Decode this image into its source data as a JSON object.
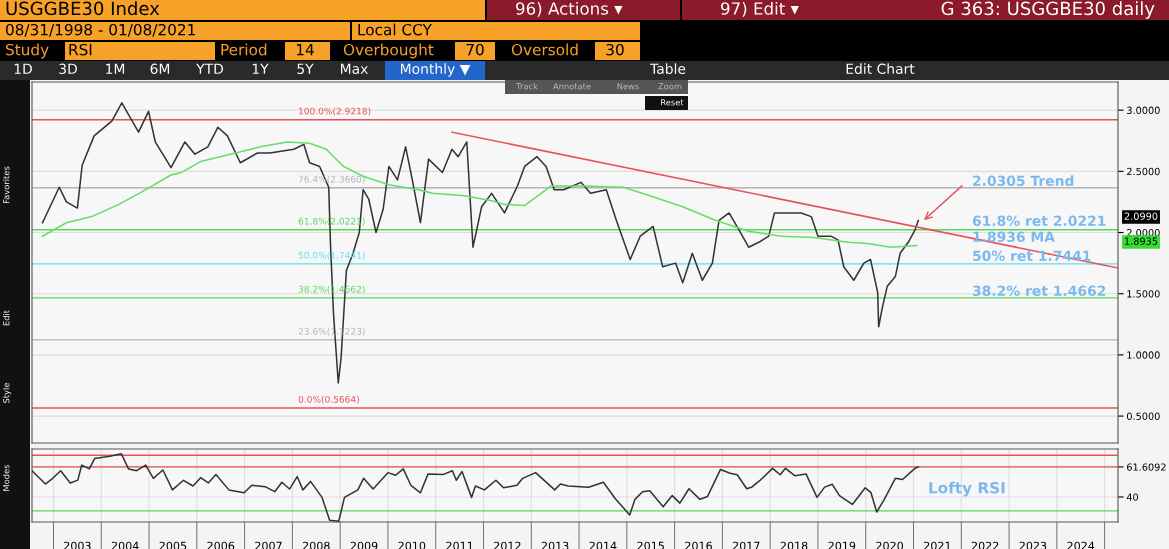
{
  "chart_data": [
    {
      "type": "line",
      "title": "USGGBE30 Index",
      "subtitle": "G 363: USGGBE30 daily",
      "annotations": [
        "96) Actions ▾",
        "97) Edit ▾",
        "08/31/1998 - 01/08/2021",
        "Local CCY",
        "Study",
        "RSI",
        "Period",
        "14",
        "Overbought",
        "70",
        "Oversold",
        "30",
        "1D",
        "3D",
        "1M",
        "6M",
        "YTD",
        "1Y",
        "5Y",
        "Max",
        "Monthly ▼",
        "Table",
        "Edit Chart",
        "Track",
        "Annotate",
        "News",
        "Zoom",
        "Reset",
        "Favorites",
        "Edit",
        "Style",
        "Modes",
        "1.8936 MA",
        "2.0990",
        "1.8935",
        "2.0305 Trend",
        "61.8% ret 2.0221",
        "50% ret 1.7441",
        "38.2% ret 1.4662"
      ],
      "series": [
        {
          "color": "#333333",
          "x": [
            2002.77,
            2003.12,
            2003.27,
            2003.5,
            2003.6,
            2003.85,
            2004.22,
            2004.43,
            2004.78,
            2004.99,
            2005.13,
            2005.46,
            2005.75,
            2005.96,
            2006.23,
            2006.44,
            2006.64,
            2006.91,
            2007.27,
            2007.53,
            2008.03,
            2008.24,
            2008.36,
            2008.57,
            2008.76,
            2008.8,
            2008.86,
            2008.96,
            2009.02,
            2009.13,
            2009.27,
            2009.4,
            2009.48,
            2009.6,
            2009.75,
            2009.9,
            2010.02,
            2010.2,
            2010.37,
            2010.51,
            2010.68,
            2010.85,
            2011.14,
            2011.34,
            2011.47,
            2011.65,
            2011.78,
            2011.96,
            2012.17,
            2012.44,
            2012.71,
            2012.86,
            2013.12,
            2013.31,
            2013.48,
            2013.68,
            2014.04,
            2014.24,
            2014.57,
            2014.78,
            2015.07,
            2015.28,
            2015.55,
            2015.75,
            2016.02,
            2016.17,
            2016.37,
            2016.58,
            2016.79,
            2016.93,
            2017.14,
            2017.35,
            2017.55,
            2017.76,
            2017.97,
            2018.09,
            2018.38,
            2018.65,
            2018.86,
            2019.0,
            2019.27,
            2019.42,
            2019.54,
            2019.75,
            2019.96,
            2020.1,
            2020.25,
            2020.27,
            2020.35,
            2020.45,
            2020.62,
            2020.72,
            2020.89,
            2021.03,
            2021.1
          ],
          "values": [
            2.08,
            2.37,
            2.25,
            2.2,
            2.55,
            2.79,
            2.91,
            3.06,
            2.82,
            2.99,
            2.74,
            2.53,
            2.74,
            2.64,
            2.7,
            2.86,
            2.79,
            2.57,
            2.65,
            2.65,
            2.68,
            2.72,
            2.57,
            2.54,
            2.37,
            1.88,
            1.34,
            0.77,
            0.98,
            1.69,
            1.83,
            2.0,
            2.35,
            2.27,
            2.0,
            2.19,
            2.54,
            2.43,
            2.7,
            2.43,
            2.08,
            2.6,
            2.49,
            2.68,
            2.62,
            2.74,
            1.88,
            2.21,
            2.32,
            2.16,
            2.38,
            2.54,
            2.62,
            2.54,
            2.35,
            2.35,
            2.41,
            2.32,
            2.35,
            2.1,
            1.78,
            1.97,
            2.05,
            1.72,
            1.75,
            1.59,
            1.83,
            1.61,
            1.75,
            2.1,
            2.16,
            2.02,
            1.88,
            1.92,
            1.97,
            2.16,
            2.16,
            2.16,
            2.13,
            1.97,
            1.97,
            1.94,
            1.72,
            1.61,
            1.75,
            1.78,
            1.51,
            1.23,
            1.39,
            1.56,
            1.64,
            1.83,
            1.92,
            2.02,
            2.099
          ]
        },
        {
          "color": "#66dd66",
          "x": [
            2002.77,
            2003.27,
            2003.8,
            2004.37,
            2004.84,
            2005.46,
            2005.67,
            2006.08,
            2006.7,
            2007.33,
            2007.89,
            2008.36,
            2008.71,
            2009.07,
            2009.48,
            2010.02,
            2010.64,
            2010.93,
            2011.61,
            2012.17,
            2012.44,
            2012.86,
            2013.41,
            2014.1,
            2014.93,
            2015.48,
            2016.17,
            2016.85,
            2017.55,
            2018.24,
            2018.92,
            2019.63,
            2020.04,
            2020.52,
            2021.07
          ],
          "values": [
            1.97,
            2.08,
            2.13,
            2.23,
            2.33,
            2.47,
            2.49,
            2.58,
            2.64,
            2.7,
            2.74,
            2.73,
            2.68,
            2.54,
            2.46,
            2.39,
            2.35,
            2.32,
            2.3,
            2.26,
            2.23,
            2.22,
            2.38,
            2.38,
            2.37,
            2.3,
            2.21,
            2.1,
            2.01,
            1.97,
            1.96,
            1.92,
            1.91,
            1.88,
            1.8936
          ]
        },
        {
          "color": "#e8505a",
          "x": [
            2011.34,
            2025.28
          ],
          "values": [
            2.82,
            1.71
          ]
        }
      ],
      "xlim": [
        2002.55,
        2025.28
      ],
      "ylim": [
        0.28,
        3.23
      ],
      "yticks": [
        {
          "value": 0.5,
          "label": "0.5000"
        },
        {
          "value": 1.0,
          "label": "1.0000"
        },
        {
          "value": 1.5,
          "label": "1.5000"
        },
        {
          "value": 2.0,
          "label": "2.0000"
        },
        {
          "value": 2.5,
          "label": "2.5000"
        },
        {
          "value": 3.0,
          "label": "3.0000"
        }
      ],
      "ref_lines": [
        {
          "axis": "y",
          "value": 2.9218,
          "label": "100.0%(2.9218)",
          "color": "#e8505a"
        },
        {
          "axis": "y",
          "value": 2.366,
          "label": "76.4%(2.3660)",
          "color": "#b4b4b4"
        },
        {
          "axis": "y",
          "value": 2.0221,
          "label": "61.8%(2.0221)",
          "color": "#5cd65c"
        },
        {
          "axis": "y",
          "value": 1.7441,
          "label": "50.0%(1.7441)",
          "color": "#5ce0e8"
        },
        {
          "axis": "y",
          "value": 1.4662,
          "label": "38.2%(1.4662)",
          "color": "#5cd65c"
        },
        {
          "axis": "y",
          "value": 1.1223,
          "label": "23.6%(1.1223)",
          "color": "#b4b4b4"
        },
        {
          "axis": "y",
          "value": 0.5664,
          "label": "0.0%(0.5664)",
          "color": "#e8505a"
        }
      ],
      "grid": "y",
      "tick_labels": "y",
      "line_style": "solid"
    },
    {
      "type": "line",
      "annotations": [
        "Lofty RSI"
      ],
      "series": [
        {
          "color": "#333333",
          "x": [
            2002.55,
            2002.83,
            2002.99,
            2003.15,
            2003.35,
            2003.51,
            2003.59,
            2003.75,
            2003.86,
            2004.18,
            2004.42,
            2004.57,
            2004.74,
            2004.93,
            2005.09,
            2005.29,
            2005.49,
            2005.72,
            2005.92,
            2006.08,
            2006.24,
            2006.4,
            2006.67,
            2006.99,
            2007.15,
            2007.43,
            2007.63,
            2007.78,
            2007.94,
            2008.1,
            2008.22,
            2008.38,
            2008.62,
            2008.78,
            2008.97,
            2009.09,
            2009.37,
            2009.49,
            2009.69,
            2010.0,
            2010.16,
            2010.32,
            2010.48,
            2010.68,
            2010.84,
            2011.15,
            2011.35,
            2011.43,
            2011.55,
            2011.75,
            2011.83,
            2012.02,
            2012.26,
            2012.42,
            2012.7,
            2012.82,
            2013.09,
            2013.49,
            2013.61,
            2013.77,
            2014.2,
            2014.51,
            2014.75,
            2015.06,
            2015.17,
            2015.33,
            2015.48,
            2015.76,
            2015.95,
            2016.11,
            2016.3,
            2016.53,
            2016.69,
            2016.96,
            2017.16,
            2017.31,
            2017.51,
            2017.62,
            2017.78,
            2018.05,
            2018.21,
            2018.32,
            2018.52,
            2018.75,
            2018.98,
            2019.14,
            2019.3,
            2019.45,
            2019.72,
            2019.99,
            2020.11,
            2020.23,
            2020.38,
            2020.62,
            2020.77,
            2021.03,
            2021.1
          ],
          "values": [
            58.9,
            49.3,
            53.6,
            58.9,
            50.1,
            52.1,
            62.9,
            60.2,
            67.6,
            69.3,
            71.1,
            60.2,
            58.9,
            62.9,
            53.4,
            59.4,
            45.1,
            52.0,
            47.9,
            53.9,
            50.1,
            56.1,
            45.1,
            43.0,
            48.4,
            47.4,
            43.8,
            50.6,
            45.7,
            54.7,
            45.1,
            51.2,
            39.7,
            23.3,
            22.5,
            39.7,
            45.1,
            53.4,
            45.7,
            57.5,
            55.6,
            60.2,
            48.4,
            43.0,
            56.6,
            56.1,
            58.9,
            52.0,
            58.3,
            39.7,
            47.9,
            45.1,
            52.0,
            46.6,
            48.4,
            53.4,
            57.5,
            45.1,
            49.3,
            47.9,
            47.0,
            50.6,
            39.1,
            27.1,
            38.3,
            43.7,
            44.5,
            32.9,
            41.0,
            35.6,
            45.9,
            38.3,
            40.4,
            59.8,
            57.1,
            56.0,
            45.9,
            47.2,
            51.7,
            60.6,
            56.0,
            60.6,
            55.2,
            56.6,
            39.7,
            47.1,
            49.1,
            41.0,
            34.6,
            46.6,
            43.1,
            29.2,
            37.8,
            53.4,
            52.6,
            60.6,
            61.6092
          ]
        }
      ],
      "xlim": [
        2002.55,
        2025.28
      ],
      "ylim": [
        22,
        74.5
      ],
      "xticks": [
        {
          "value": 2003.5,
          "label": "2003"
        },
        {
          "value": 2004.5,
          "label": "2004"
        },
        {
          "value": 2005.5,
          "label": "2005"
        },
        {
          "value": 2006.5,
          "label": "2006"
        },
        {
          "value": 2007.5,
          "label": "2007"
        },
        {
          "value": 2008.5,
          "label": "2008"
        },
        {
          "value": 2009.5,
          "label": "2009"
        },
        {
          "value": 2010.5,
          "label": "2010"
        },
        {
          "value": 2011.5,
          "label": "2011"
        },
        {
          "value": 2012.5,
          "label": "2012"
        },
        {
          "value": 2013.5,
          "label": "2013"
        },
        {
          "value": 2014.5,
          "label": "2014"
        },
        {
          "value": 2015.5,
          "label": "2015"
        },
        {
          "value": 2016.5,
          "label": "2016"
        },
        {
          "value": 2017.5,
          "label": "2017"
        },
        {
          "value": 2018.5,
          "label": "2018"
        },
        {
          "value": 2019.5,
          "label": "2019"
        },
        {
          "value": 2020.5,
          "label": "2020"
        },
        {
          "value": 2021.5,
          "label": "2021"
        },
        {
          "value": 2022.5,
          "label": "2022"
        },
        {
          "value": 2023.5,
          "label": "2023"
        },
        {
          "value": 2024.5,
          "label": "2024"
        },
        {
          "value": 2003,
          "label": null
        },
        {
          "value": 2004,
          "label": null
        },
        {
          "value": 2005,
          "label": null
        },
        {
          "value": 2006,
          "label": null
        },
        {
          "value": 2007,
          "label": null
        },
        {
          "value": 2008,
          "label": null
        },
        {
          "value": 2009,
          "label": null
        },
        {
          "value": 2010,
          "label": null
        },
        {
          "value": 2011,
          "label": null
        },
        {
          "value": 2012,
          "label": null
        },
        {
          "value": 2013,
          "label": null
        },
        {
          "value": 2014,
          "label": null
        },
        {
          "value": 2015,
          "label": null
        },
        {
          "value": 2016,
          "label": null
        },
        {
          "value": 2017,
          "label": null
        },
        {
          "value": 2018,
          "label": null
        },
        {
          "value": 2019,
          "label": null
        },
        {
          "value": 2020,
          "label": null
        },
        {
          "value": 2021,
          "label": null
        },
        {
          "value": 2022,
          "label": null
        },
        {
          "value": 2023,
          "label": null
        },
        {
          "value": 2024,
          "label": null
        },
        {
          "value": 2025,
          "label": null
        }
      ],
      "yticks": [
        40,
        {
          "value": 61.6092,
          "label": "61.6092"
        }
      ],
      "ref_lines": [
        {
          "axis": "y",
          "value": 70,
          "color": "#e8505a"
        },
        {
          "axis": "y",
          "value": 61.6092,
          "color": "#e8505a"
        },
        {
          "axis": "y",
          "value": 30,
          "color": "#5cd65c"
        }
      ],
      "grid": true,
      "line_style": "solid"
    }
  ]
}
